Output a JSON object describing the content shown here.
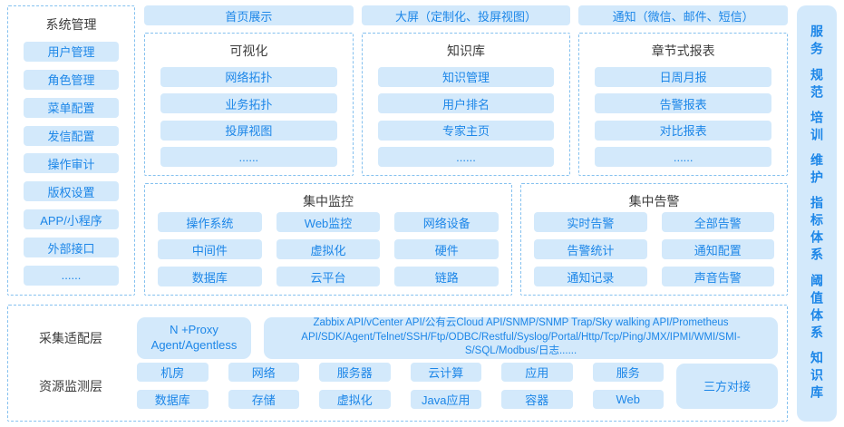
{
  "colors": {
    "block_fill": "#d3e9fb",
    "block_text": "#1c86e8",
    "dashed_border": "#85c1ef",
    "title_text": "#3c3c3c"
  },
  "left_panel": {
    "title": "系统管理",
    "items": [
      "用户管理",
      "角色管理",
      "菜单配置",
      "发信配置",
      "操作审计",
      "版权设置",
      "APP/小程序",
      "外部接口",
      "......"
    ]
  },
  "top_buttons": [
    "首页展示",
    "大屏（定制化、投屏视图）",
    "通知（微信、邮件、短信）"
  ],
  "feature_boxes": [
    {
      "title": "可视化",
      "items": [
        "网络拓扑",
        "业务拓扑",
        "投屏视图",
        "......"
      ]
    },
    {
      "title": "知识库",
      "items": [
        "知识管理",
        "用户排名",
        "专家主页",
        "......"
      ]
    },
    {
      "title": "章节式报表",
      "items": [
        "日周月报",
        "告警报表",
        "对比报表",
        "......"
      ]
    }
  ],
  "monitor_box": {
    "title": "集中监控",
    "items": [
      "操作系统",
      "Web监控",
      "网络设备",
      "中间件",
      "虚拟化",
      "硬件",
      "数据库",
      "云平台",
      "链路"
    ]
  },
  "alarm_box": {
    "title": "集中告警",
    "items": [
      "实时告警",
      "全部告警",
      "告警统计",
      "通知配置",
      "通知记录",
      "声音告警"
    ]
  },
  "bottom_panel": {
    "adapter_row": {
      "label": "采集适配层",
      "proxy_button": "N +Proxy\nAgent/Agentless",
      "api_button": "Zabbix API/vCenter API/公有云Cloud API/SNMP/SNMP Trap/Sky walking API/Prometheus API/SDK/Agent/Telnet/SSH/Ftp/ODBC/Restful/Syslog/Portal/Http/Tcp/Ping/JMX/IPMI/WMI/SMI-S/SQL/Modbus/日志......"
    },
    "resource_row": {
      "label": "资源监测层",
      "items": [
        "机房",
        "网络",
        "服务器",
        "云计算",
        "应用",
        "服务",
        "数据库",
        "存储",
        "虚拟化",
        "Java应用",
        "容器",
        "Web"
      ],
      "side_button": "三方对接"
    }
  },
  "right_panel": {
    "items": [
      "服务",
      "规范",
      "培训",
      "维护",
      "指标体系",
      "阈值体系",
      "知识库"
    ]
  }
}
